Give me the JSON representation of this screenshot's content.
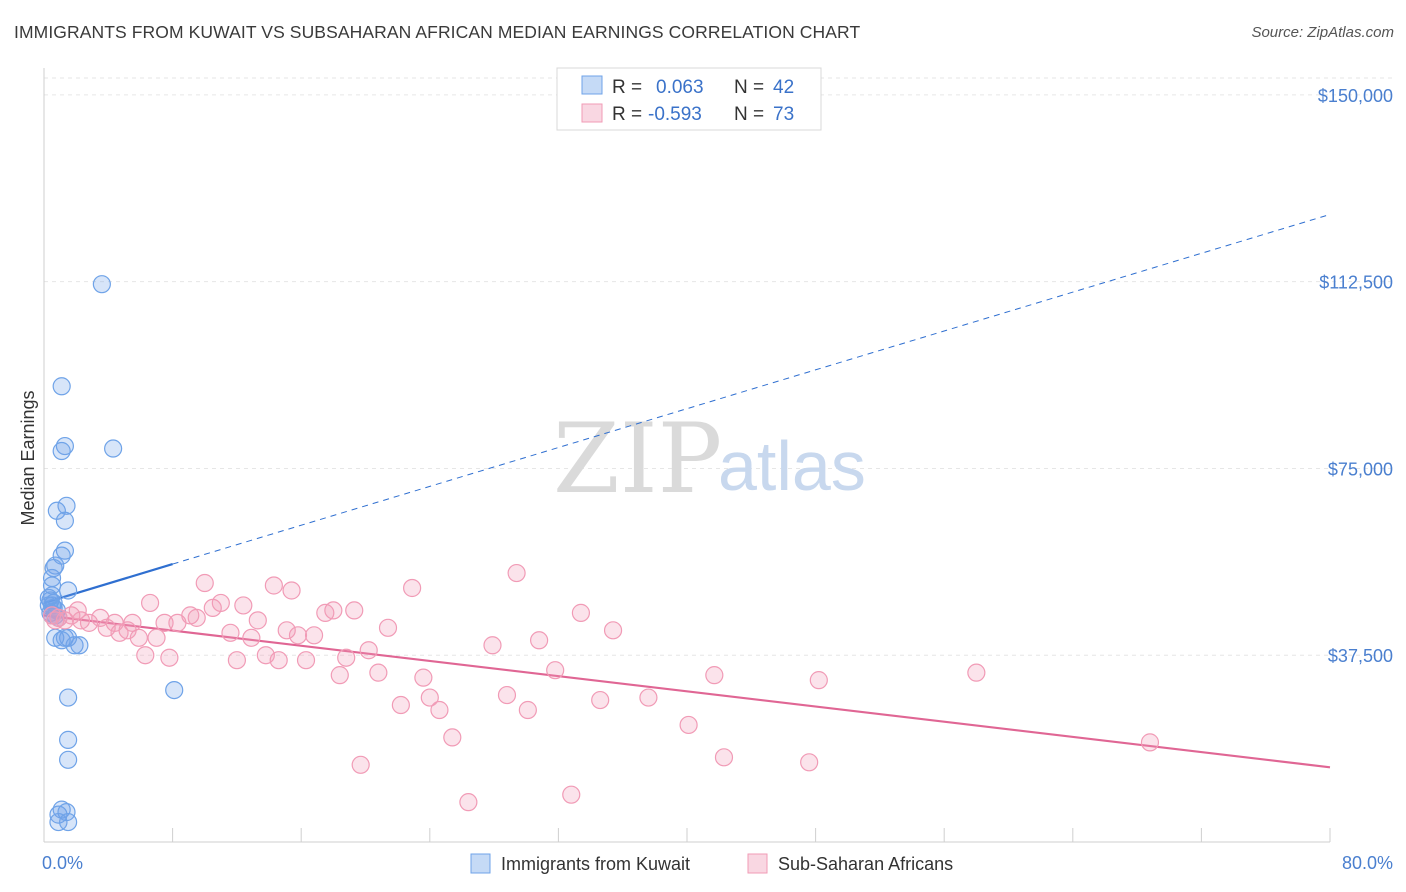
{
  "header": {
    "title": "IMMIGRANTS FROM KUWAIT VS SUBSAHARAN AFRICAN MEDIAN EARNINGS CORRELATION CHART",
    "source": "Source: ZipAtlas.com"
  },
  "watermark": {
    "zip": "ZIP",
    "atlas": "atlas"
  },
  "legend": {
    "r_label": "R =",
    "n_label": "N =",
    "rows": [
      {
        "r": "0.063",
        "n": "42",
        "color": "#6fa3e8"
      },
      {
        "r": "-0.593",
        "n": "73",
        "color": "#f19bb6"
      }
    ]
  },
  "chart_data": {
    "type": "scatter",
    "title": "IMMIGRANTS FROM KUWAIT VS SUBSAHARAN AFRICAN MEDIAN EARNINGS CORRELATION CHART",
    "xlabel": "",
    "ylabel": "Median Earnings",
    "xlim": [
      0,
      80
    ],
    "ylim": [
      0,
      155000
    ],
    "x_tick_labels": [
      "0.0%",
      "80.0%"
    ],
    "y_ticks": [
      37500,
      75000,
      112500,
      150000
    ],
    "y_tick_labels": [
      "$37,500",
      "$75,000",
      "$112,500",
      "$150,000"
    ],
    "grid": true,
    "legend_position": "top-center",
    "series": [
      {
        "name": "Immigrants from Kuwait",
        "color": "#6fa3e8",
        "x": [
          3.6,
          1.1,
          1.3,
          1.1,
          4.3,
          1.4,
          0.8,
          1.3,
          1.3,
          1.1,
          0.7,
          0.6,
          0.5,
          1.5,
          0.5,
          0.5,
          0.3,
          0.4,
          0.6,
          0.3,
          0.5,
          0.6,
          0.8,
          0.4,
          0.5,
          0.7,
          0.9,
          0.7,
          1.3,
          1.5,
          1.9,
          2.2,
          1.1,
          1.5,
          1.5,
          8.1,
          1.5,
          1.1,
          0.9,
          1.4,
          0.9,
          1.5
        ],
        "y": [
          112000,
          91500,
          79500,
          78500,
          79000,
          67500,
          66500,
          64500,
          58500,
          57500,
          55500,
          55000,
          53000,
          50500,
          51500,
          49500,
          49000,
          48500,
          48000,
          47500,
          47500,
          47000,
          46500,
          46000,
          45500,
          45500,
          45000,
          41000,
          41000,
          41000,
          39500,
          39500,
          40500,
          29000,
          20500,
          30500,
          16500,
          6500,
          5500,
          6000,
          4000,
          4000
        ]
      },
      {
        "name": "Sub-Saharan Africans",
        "color": "#f19bb6",
        "x": [
          0.5,
          0.7,
          0.9,
          1.3,
          1.7,
          2.1,
          2.3,
          2.8,
          3.5,
          3.9,
          4.4,
          4.7,
          5.2,
          5.5,
          5.9,
          6.3,
          6.6,
          7.0,
          7.5,
          7.8,
          8.3,
          9.1,
          9.5,
          10.0,
          10.5,
          11.0,
          11.6,
          12.0,
          12.4,
          12.9,
          13.3,
          13.8,
          14.3,
          14.6,
          15.1,
          15.4,
          15.8,
          16.3,
          16.8,
          17.5,
          18.0,
          18.4,
          18.8,
          19.3,
          19.7,
          20.2,
          20.8,
          21.4,
          22.2,
          22.9,
          23.6,
          24.0,
          24.6,
          25.4,
          26.4,
          27.9,
          28.8,
          29.4,
          30.1,
          30.8,
          31.8,
          32.8,
          33.4,
          34.6,
          35.4,
          37.6,
          40.1,
          41.7,
          42.3,
          47.6,
          48.2,
          58.0,
          68.8
        ],
        "y": [
          45500,
          44500,
          45000,
          44500,
          45500,
          46500,
          44500,
          44000,
          45000,
          43000,
          44000,
          42000,
          42500,
          44000,
          41000,
          37500,
          48000,
          41000,
          44000,
          37000,
          44000,
          45500,
          45000,
          52000,
          47000,
          48000,
          42000,
          36500,
          47500,
          41000,
          44500,
          37500,
          51500,
          36500,
          42500,
          50500,
          41500,
          36500,
          41500,
          46000,
          46500,
          33500,
          37000,
          46500,
          15500,
          38500,
          34000,
          43000,
          27500,
          51000,
          33000,
          29000,
          26500,
          21000,
          8000,
          39500,
          29500,
          54000,
          26500,
          40500,
          34500,
          9500,
          46000,
          28500,
          42500,
          29000,
          23500,
          33500,
          17000,
          16000,
          32500,
          34000,
          20000
        ]
      }
    ],
    "trend_lines": [
      {
        "series": "Immigrants from Kuwait",
        "color": "#2f6fd0",
        "solid_x": [
          0,
          8
        ],
        "dashed_x": [
          8,
          80
        ],
        "y_at_x0": 48000,
        "y_at_x80": 126000
      },
      {
        "series": "Sub-Saharan Africans",
        "color": "#e06694",
        "solid_x": [
          0,
          80
        ],
        "y_at_x0": 45500,
        "y_at_x80": 15000
      }
    ]
  }
}
